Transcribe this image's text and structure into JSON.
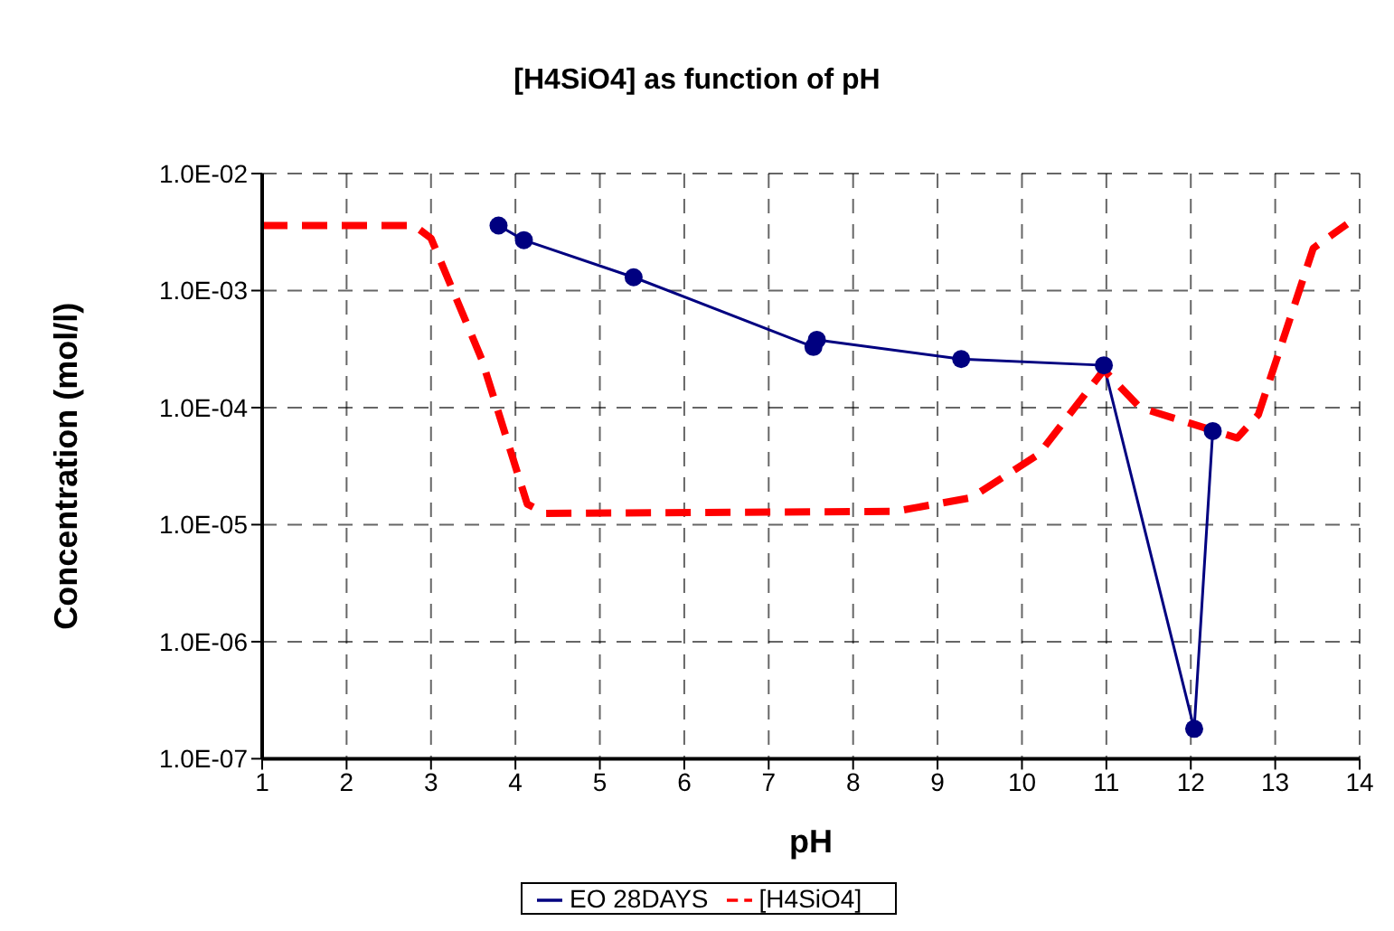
{
  "chart_data": {
    "type": "line",
    "title": "[H4SiO4] as function of pH",
    "xlabel": "pH",
    "ylabel": "Concentration (mol/l)",
    "xlim": [
      1,
      14
    ],
    "xticks": [
      1,
      2,
      3,
      4,
      5,
      6,
      7,
      8,
      9,
      10,
      11,
      12,
      13,
      14
    ],
    "ylim": [
      1e-07,
      0.01
    ],
    "yticks": [
      {
        "value": 1e-07,
        "label": "1.0E-07"
      },
      {
        "value": 1e-06,
        "label": "1.0E-06"
      },
      {
        "value": 1e-05,
        "label": "1.0E-05"
      },
      {
        "value": 0.0001,
        "label": "1.0E-04"
      },
      {
        "value": 0.001,
        "label": "1.0E-03"
      },
      {
        "value": 0.01,
        "label": "1.0E-02"
      }
    ],
    "log": "y",
    "grid": true,
    "legend": "bottom",
    "series": [
      {
        "name": "EO 28DAYS",
        "color": "#000080",
        "marker": "circle",
        "line_style": "solid",
        "x": [
          3.8,
          4.1,
          5.4,
          7.53,
          7.57,
          9.28,
          10.97,
          12.04,
          12.26
        ],
        "values": [
          0.0036,
          0.0027,
          0.0013,
          0.00033,
          0.00038,
          0.00026,
          0.00023,
          1.8e-07,
          6.3e-05
        ]
      },
      {
        "name": "[H4SiO4]",
        "color": "#ff0000",
        "marker": "none",
        "line_style": "dashed",
        "x": [
          1,
          2.8,
          3.0,
          3.6,
          4.14,
          4.35,
          8.5,
          9.4,
          10.2,
          10.97,
          11.4,
          12.2,
          12.55,
          12.8,
          13.45,
          13.85
        ],
        "values": [
          0.0036,
          0.0036,
          0.0028,
          0.00026,
          1.5e-05,
          1.25e-05,
          1.3e-05,
          1.7e-05,
          4e-05,
          0.00021,
          0.0001,
          6.6e-05,
          5.5e-05,
          8.7e-05,
          0.0023,
          0.0037
        ]
      }
    ]
  }
}
